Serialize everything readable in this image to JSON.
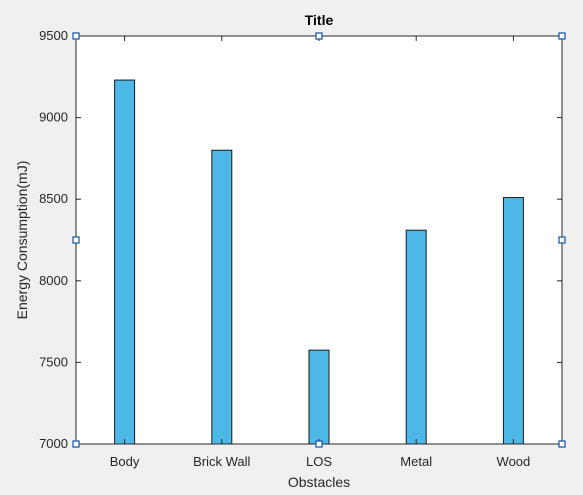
{
  "chart_data": {
    "type": "bar",
    "title": "Title",
    "xlabel": "Obstacles",
    "ylabel": "Energy Consumption(mJ)",
    "categories": [
      "Body",
      "Brick Wall",
      "LOS",
      "Metal",
      "Wood"
    ],
    "values": [
      9230,
      8800,
      7575,
      8310,
      8510
    ],
    "ylim": [
      7000,
      9500
    ],
    "yticks": [
      7000,
      7500,
      8000,
      8500,
      9000,
      9500
    ],
    "grid": false,
    "bar_color": "#4db8e8"
  }
}
